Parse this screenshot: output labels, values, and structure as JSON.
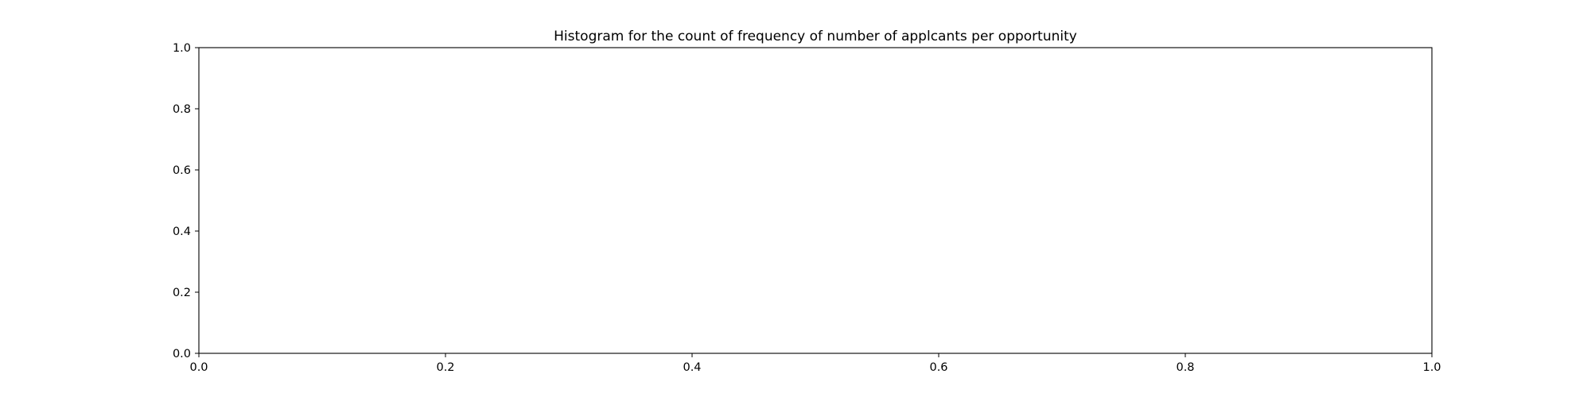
{
  "chart_data": {
    "type": "bar",
    "title": "Histogram for the count of frequency of number of applcants per opportunity",
    "xlabel": "",
    "ylabel": "",
    "xlim": [
      0.0,
      1.0
    ],
    "ylim": [
      0.0,
      1.0
    ],
    "x_ticks": [
      "0.0",
      "0.2",
      "0.4",
      "0.6",
      "0.8",
      "1.0"
    ],
    "y_ticks": [
      "0.0",
      "0.2",
      "0.4",
      "0.6",
      "0.8",
      "1.0"
    ],
    "series": [],
    "grid": false,
    "legend": "none"
  }
}
